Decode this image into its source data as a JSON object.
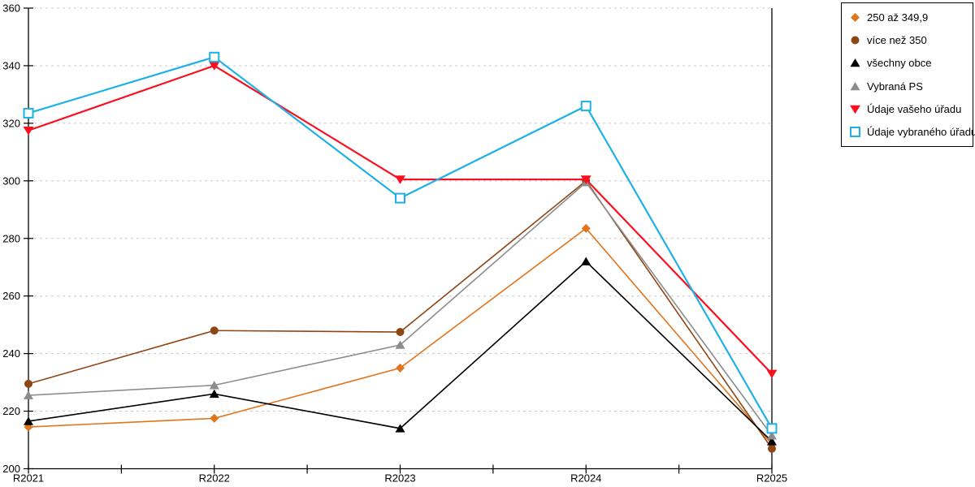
{
  "chart_data": {
    "type": "line",
    "title": "",
    "categories": [
      "R2021",
      "R2022",
      "R2023",
      "R2024",
      "R2025"
    ],
    "series": [
      {
        "name": "250 až 349,9",
        "marker": "diamond",
        "color": "#E0751D",
        "line_width": 1.6,
        "values": [
          214.5,
          217.5,
          235,
          283.5,
          208.5
        ]
      },
      {
        "name": "více než 350",
        "marker": "circle",
        "color": "#8E4613",
        "line_width": 1.6,
        "values": [
          229.5,
          248,
          247.5,
          300,
          207
        ]
      },
      {
        "name": "všechny obce",
        "marker": "triangle-up",
        "color": "#000000",
        "line_width": 1.6,
        "values": [
          216.5,
          226,
          214,
          272,
          209.5
        ]
      },
      {
        "name": "Vybraná PS",
        "marker": "triangle-up",
        "color": "#8C8C8C",
        "line_width": 1.6,
        "values": [
          225.5,
          229,
          243,
          299.5,
          211.5
        ]
      },
      {
        "name": "Údaje vašeho úřadu",
        "marker": "triangle-down",
        "color": "#FB0F1E",
        "line_width": 2.2,
        "values": [
          317.5,
          340,
          300.5,
          300.5,
          233
        ]
      },
      {
        "name": "Údaje vybraného úřadu",
        "marker": "square-open",
        "color": "#1FB1E6",
        "line_width": 2.2,
        "values": [
          323.5,
          343,
          294,
          326,
          214
        ]
      }
    ],
    "ylim": [
      200,
      360
    ],
    "ytick_step": 20,
    "y_tick_labels": [
      "200",
      "220",
      "240",
      "260",
      "280",
      "300",
      "320",
      "340",
      "360"
    ],
    "grid": "dashed-horizontal",
    "legend_position": "top-right",
    "colors": {
      "background": "#FFFFFF",
      "axis": "#000000",
      "gridline": "#C8C8C8",
      "legend_border": "#000000"
    }
  }
}
